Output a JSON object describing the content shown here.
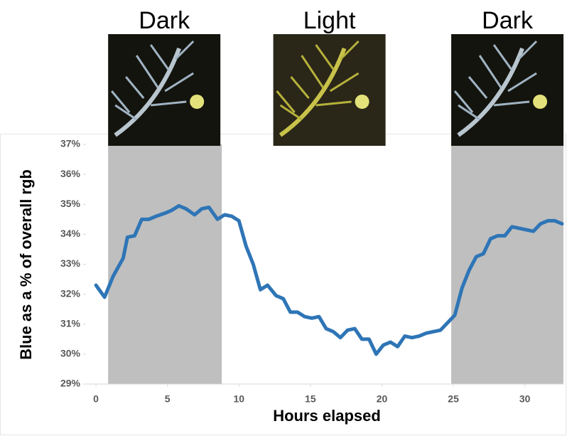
{
  "chart_data": {
    "type": "line",
    "x_label": "Hours elapsed",
    "y_label": "Blue as a % of overall rgb",
    "xlim": [
      -0.7,
      32.7
    ],
    "xticks": [
      0,
      5,
      10,
      15,
      20,
      25,
      30
    ],
    "ylim": [
      29,
      37
    ],
    "yticks": [
      {
        "value": 29,
        "label": "29%"
      },
      {
        "value": 30,
        "label": "30%"
      },
      {
        "value": 31,
        "label": "31%"
      },
      {
        "value": 32,
        "label": "32%"
      },
      {
        "value": 33,
        "label": "33%"
      },
      {
        "value": 34,
        "label": "34%"
      },
      {
        "value": 35,
        "label": "35%"
      },
      {
        "value": 36,
        "label": "36%"
      },
      {
        "value": 37,
        "label": "37%"
      }
    ],
    "periods": [
      {
        "label": "Dark",
        "start": 0.85,
        "end": 8.8,
        "shaded": true
      },
      {
        "label": "Light",
        "start": 8.8,
        "end": 24.85,
        "shaded": false
      },
      {
        "label": "Dark",
        "start": 24.85,
        "end": 32.7,
        "shaded": true
      }
    ],
    "shade_color": "#bfbfbf",
    "x": [
      0,
      0.6,
      1.2,
      1.9,
      2.2,
      2.7,
      3.2,
      3.7,
      4.2,
      4.8,
      5.3,
      5.8,
      6.3,
      6.9,
      7.4,
      7.9,
      8.5,
      9.0,
      9.5,
      10.0,
      10.5,
      11.0,
      11.5,
      12.0,
      12.6,
      13.1,
      13.6,
      14.1,
      14.6,
      15.1,
      15.6,
      16.1,
      16.6,
      17.1,
      17.6,
      18.1,
      18.6,
      19.1,
      19.6,
      20.1,
      20.6,
      21.1,
      21.6,
      22.1,
      22.6,
      23.1,
      23.6,
      24.1,
      24.6,
      25.1,
      25.6,
      26.1,
      26.6,
      27.1,
      27.6,
      28.1,
      28.6,
      29.1,
      29.6,
      30.1,
      30.6,
      31.1,
      31.6,
      32.1,
      32.6
    ],
    "series": [
      {
        "color": "#2e75b6",
        "values": [
          32.3,
          31.9,
          32.6,
          33.2,
          33.9,
          33.95,
          34.5,
          34.5,
          34.6,
          34.7,
          34.8,
          34.95,
          34.85,
          34.65,
          34.85,
          34.9,
          34.5,
          34.65,
          34.6,
          34.45,
          33.6,
          33.0,
          32.15,
          32.3,
          31.95,
          31.85,
          31.4,
          31.4,
          31.25,
          31.2,
          31.25,
          30.85,
          30.75,
          30.55,
          30.8,
          30.85,
          30.5,
          30.5,
          30.0,
          30.3,
          30.4,
          30.25,
          30.6,
          30.55,
          30.6,
          30.7,
          30.75,
          30.8,
          31.05,
          31.3,
          32.2,
          32.8,
          33.25,
          33.35,
          33.85,
          33.95,
          33.95,
          34.25,
          34.2,
          34.15,
          34.1,
          34.35,
          34.45,
          34.45,
          34.35
        ]
      }
    ]
  }
}
